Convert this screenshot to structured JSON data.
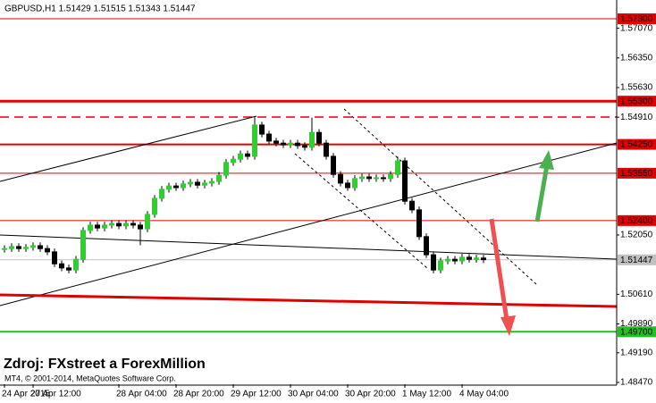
{
  "chart_data": {
    "type": "candlestick",
    "title": "GBPUSD,H1  1.51429 1.51515 1.51343 1.51447",
    "annotation": "Zdroj: FXstreet a ForexMillion",
    "footnote": "MT4, © 2001-2014, MetaQuotes Software Corp.",
    "up_color": "#32cd32",
    "down_color": "#000000",
    "categories": [
      "24 Apr 2015",
      null,
      null,
      null,
      "27 Apr 12:00",
      null,
      null,
      null,
      null,
      null,
      null,
      null,
      null,
      null,
      null,
      null,
      "28 Apr 04:00",
      null,
      null,
      null,
      null,
      null,
      null,
      null,
      "28 Apr 20:00",
      null,
      null,
      null,
      null,
      null,
      null,
      null,
      "29 Apr 12:00",
      null,
      null,
      null,
      null,
      null,
      null,
      null,
      "30 Apr 04:00",
      null,
      null,
      null,
      null,
      null,
      null,
      null,
      "30 Apr 20:00",
      null,
      null,
      null,
      null,
      null,
      null,
      null,
      "1 May 12:00",
      null,
      null,
      null,
      null,
      null,
      null,
      null,
      "4 May 04:00",
      null,
      null,
      null
    ],
    "open": [
      1.517,
      1.5172,
      1.5177,
      1.5172,
      1.5175,
      1.5179,
      1.5172,
      1.5164,
      1.5135,
      1.5125,
      1.512,
      1.5146,
      1.5216,
      1.5229,
      1.5222,
      1.5229,
      1.5233,
      1.5227,
      1.5233,
      1.5229,
      1.522,
      1.5255,
      1.5294,
      1.5316,
      1.5324,
      1.532,
      1.5329,
      1.5333,
      1.5326,
      1.5331,
      1.5335,
      1.535,
      1.5381,
      1.5389,
      1.5402,
      1.5396,
      1.5472,
      1.545,
      1.5433,
      1.5428,
      1.5424,
      1.5428,
      1.5422,
      1.5418,
      1.5454,
      1.5428,
      1.5396,
      1.5352,
      1.5331,
      1.532,
      1.5342,
      1.5346,
      1.5342,
      1.5344,
      1.5342,
      1.5352,
      1.5385,
      1.5287,
      1.5266,
      1.5201,
      1.5157,
      1.512,
      1.5142,
      1.5146,
      1.5142,
      1.5151,
      1.5146,
      1.5149
    ],
    "high": [
      1.518,
      1.5185,
      1.5185,
      1.5183,
      1.5187,
      1.5187,
      1.518,
      1.5172,
      1.5143,
      1.5133,
      1.5154,
      1.5224,
      1.5237,
      1.5237,
      1.5237,
      1.5241,
      1.5241,
      1.5241,
      1.5241,
      1.5237,
      1.5263,
      1.5302,
      1.5324,
      1.5332,
      1.5332,
      1.5337,
      1.5341,
      1.5341,
      1.5339,
      1.5343,
      1.5358,
      1.5389,
      1.5397,
      1.541,
      1.541,
      1.5491,
      1.548,
      1.5458,
      1.5441,
      1.5436,
      1.5436,
      1.5436,
      1.543,
      1.549,
      1.5462,
      1.5436,
      1.5404,
      1.536,
      1.5339,
      1.535,
      1.5354,
      1.5354,
      1.5352,
      1.5352,
      1.536,
      1.5395,
      1.5393,
      1.5295,
      1.5274,
      1.5209,
      1.5165,
      1.515,
      1.5154,
      1.5154,
      1.5159,
      1.5159,
      1.5157,
      1.5157
    ],
    "low": [
      1.5162,
      1.5164,
      1.5164,
      1.5164,
      1.5167,
      1.5164,
      1.5156,
      1.5127,
      1.5117,
      1.5112,
      1.5112,
      1.5138,
      1.5208,
      1.5214,
      1.5214,
      1.5221,
      1.5219,
      1.5219,
      1.5221,
      1.518,
      1.5212,
      1.5247,
      1.5286,
      1.5308,
      1.5312,
      1.5312,
      1.5321,
      1.5318,
      1.5318,
      1.5323,
      1.5327,
      1.5342,
      1.5373,
      1.5381,
      1.5388,
      1.5388,
      1.5442,
      1.5425,
      1.542,
      1.5416,
      1.5416,
      1.5414,
      1.541,
      1.541,
      1.542,
      1.5388,
      1.5344,
      1.5323,
      1.5312,
      1.5312,
      1.5334,
      1.5334,
      1.5334,
      1.5334,
      1.5334,
      1.5344,
      1.5279,
      1.5258,
      1.5193,
      1.5149,
      1.5112,
      1.5112,
      1.5134,
      1.5134,
      1.5134,
      1.5138,
      1.5138,
      1.5137
    ],
    "close": [
      1.5172,
      1.5177,
      1.5172,
      1.5175,
      1.5179,
      1.5172,
      1.5164,
      1.5135,
      1.5125,
      1.512,
      1.5146,
      1.5216,
      1.5229,
      1.5222,
      1.5229,
      1.5233,
      1.5227,
      1.5233,
      1.5229,
      1.522,
      1.5255,
      1.5294,
      1.5316,
      1.5324,
      1.532,
      1.5329,
      1.5333,
      1.5326,
      1.5331,
      1.5335,
      1.535,
      1.5381,
      1.5389,
      1.5402,
      1.5396,
      1.5472,
      1.545,
      1.5433,
      1.5428,
      1.5424,
      1.5428,
      1.5422,
      1.5418,
      1.5454,
      1.5428,
      1.5396,
      1.5352,
      1.5331,
      1.532,
      1.5342,
      1.5346,
      1.5342,
      1.5344,
      1.5342,
      1.5352,
      1.5385,
      1.5287,
      1.5266,
      1.5201,
      1.5157,
      1.512,
      1.5142,
      1.5146,
      1.5142,
      1.5151,
      1.5146,
      1.5149,
      1.5145
    ],
    "ylim": [
      1.48426,
      1.57756
    ],
    "yticks": [
      {
        "value": 1.5707,
        "label": "1.57070"
      },
      {
        "value": 1.5635,
        "label": "1.56350"
      },
      {
        "value": 1.5563,
        "label": "1.55630"
      },
      {
        "value": 1.5491,
        "label": "1.54910"
      },
      {
        "value": 1.5205,
        "label": "1.52050"
      },
      {
        "value": 1.5061,
        "label": "1.50610"
      },
      {
        "value": 1.4989,
        "label": "1.49890"
      },
      {
        "value": 1.4919,
        "label": "1.49190"
      },
      {
        "value": 1.4847,
        "label": "1.48470"
      }
    ],
    "levels": [
      {
        "value": 1.573,
        "label": "1.57300",
        "color": "#e00000",
        "width": 1
      },
      {
        "value": 1.553,
        "label": "1.55300",
        "color": "#e00000",
        "width": 3
      },
      {
        "value": 1.5425,
        "label": "1.54250",
        "color": "#e00000",
        "width": 2
      },
      {
        "value": 1.5355,
        "label": "1.53550",
        "color": "#e00000",
        "width": 1
      },
      {
        "value": 1.524,
        "label": "1.52400",
        "color": "#e00000",
        "width": 1
      },
      {
        "value": 1.51447,
        "label": "1.51447",
        "color": "#c0c0c0",
        "width": 1
      },
      {
        "value": 1.497,
        "label": "1.49700",
        "color": "#22c022",
        "width": 2
      }
    ]
  }
}
